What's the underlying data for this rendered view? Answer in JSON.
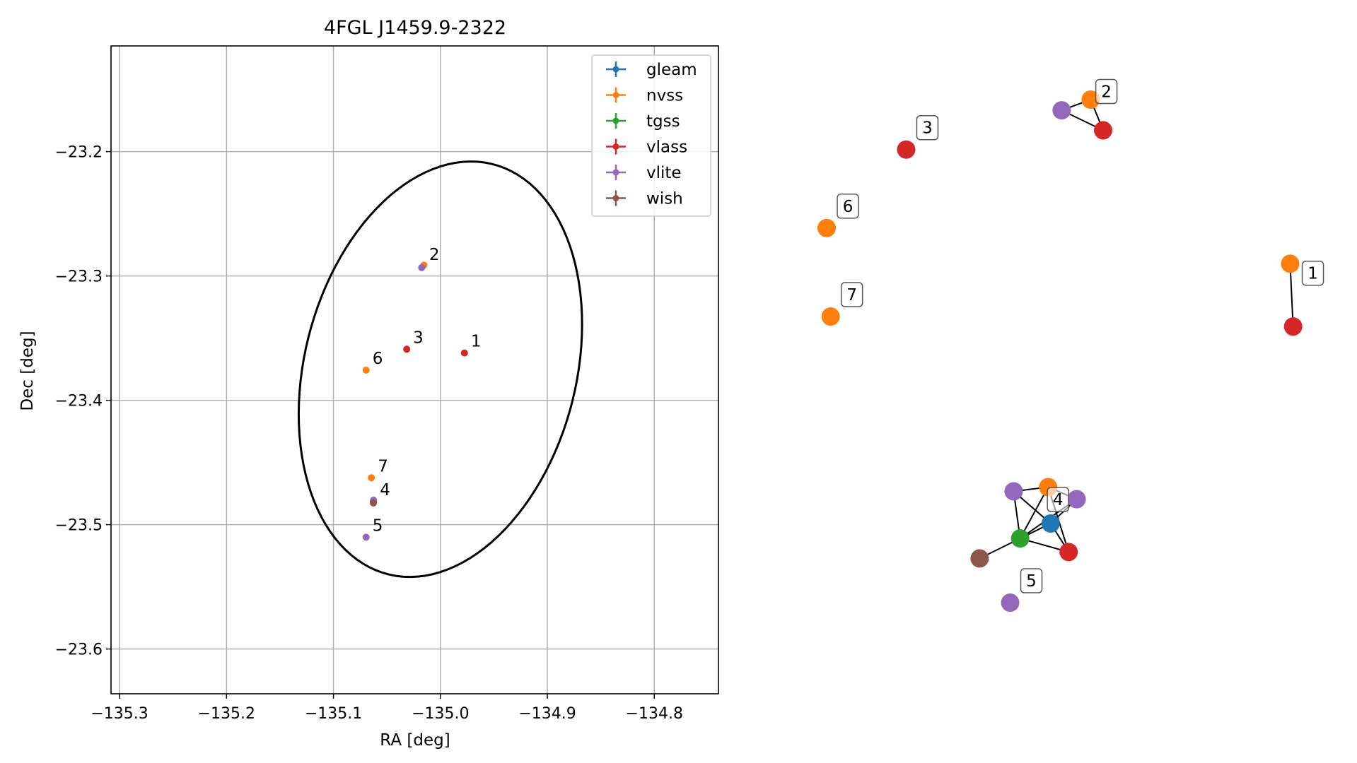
{
  "chart_data": [
    {
      "type": "scatter",
      "title": "4FGL J1459.9-2322",
      "xlabel": "RA [deg]",
      "ylabel": "Dec [deg]",
      "xlim": [
        -135.308,
        -134.74
      ],
      "ylim": [
        -23.636,
        -23.115
      ],
      "xticks": [
        -135.3,
        -135.2,
        -135.1,
        -135.0,
        -134.9,
        -134.8
      ],
      "xtick_labels": [
        "−135.3",
        "−135.2",
        "−135.1",
        "−135.0",
        "−134.9",
        "−134.8"
      ],
      "yticks": [
        -23.2,
        -23.3,
        -23.4,
        -23.5,
        -23.6
      ],
      "ytick_labels": [
        "−23.2",
        "−23.3",
        "−23.4",
        "−23.5",
        "−23.6"
      ],
      "grid": true,
      "legend_position": "top-right",
      "colors": {
        "gleam": "#1f77b4",
        "nvss": "#ff7f0e",
        "tgss": "#2ca02c",
        "vlass": "#d62728",
        "vlite": "#9467bd",
        "wish": "#8c564b"
      },
      "series": [
        {
          "name": "gleam",
          "x": [
            -135.0626
          ],
          "y": [
            -23.4815
          ]
        },
        {
          "name": "nvss",
          "x": [
            -135.0155,
            -135.0695,
            -135.0645
          ],
          "y": [
            -23.2913,
            -23.3757,
            -23.4623
          ]
        },
        {
          "name": "tgss",
          "x": [
            -135.0628
          ],
          "y": [
            -23.4813
          ]
        },
        {
          "name": "vlass",
          "x": [
            -134.9775,
            -135.0315,
            -135.0625
          ],
          "y": [
            -23.3619,
            -23.3589,
            -23.482
          ]
        },
        {
          "name": "vlite",
          "x": [
            -135.0175,
            -135.0625,
            -135.0695
          ],
          "y": [
            -23.2933,
            -23.4803,
            -23.5101
          ]
        },
        {
          "name": "wish",
          "x": [
            -135.0627
          ],
          "y": [
            -23.4826
          ]
        }
      ],
      "labels": [
        {
          "text": "1",
          "x": -134.9775,
          "y": -23.3619
        },
        {
          "text": "2",
          "x": -135.0165,
          "y": -23.2923
        },
        {
          "text": "3",
          "x": -135.0315,
          "y": -23.3589
        },
        {
          "text": "4",
          "x": -135.0625,
          "y": -23.4815
        },
        {
          "text": "5",
          "x": -135.0695,
          "y": -23.5101
        },
        {
          "text": "6",
          "x": -135.0695,
          "y": -23.3757
        },
        {
          "text": "7",
          "x": -135.0645,
          "y": -23.4623
        }
      ],
      "ellipse": {
        "center_ra": -135.0,
        "center_dec": -23.375,
        "semi_major_deg": 0.171,
        "semi_minor_deg": 0.116,
        "position_angle_deg": 16.9
      }
    },
    {
      "type": "network",
      "groups": [
        {
          "label": "1",
          "nodes": [
            {
              "survey": "nvss",
              "gx": 0.961,
              "gy": 0.33
            },
            {
              "survey": "vlass",
              "gx": 0.967,
              "gy": 0.418
            }
          ],
          "edges": [
            [
              0,
              1
            ]
          ]
        },
        {
          "label": "2",
          "nodes": [
            {
              "survey": "vlite",
              "gx": 0.504,
              "gy": 0.115
            },
            {
              "survey": "nvss",
              "gx": 0.562,
              "gy": 0.1
            },
            {
              "survey": "vlass",
              "gx": 0.587,
              "gy": 0.143
            }
          ],
          "edges": [
            [
              0,
              1
            ],
            [
              0,
              2
            ],
            [
              1,
              2
            ]
          ]
        },
        {
          "label": "3",
          "nodes": [
            {
              "survey": "vlass",
              "gx": 0.193,
              "gy": 0.17
            }
          ],
          "edges": []
        },
        {
          "label": "4",
          "nodes": [
            {
              "survey": "vlite",
              "gx": 0.408,
              "gy": 0.649
            },
            {
              "survey": "nvss",
              "gx": 0.477,
              "gy": 0.643
            },
            {
              "survey": "vlite",
              "gx": 0.534,
              "gy": 0.66
            },
            {
              "survey": "gleam",
              "gx": 0.482,
              "gy": 0.694
            },
            {
              "survey": "tgss",
              "gx": 0.421,
              "gy": 0.715
            },
            {
              "survey": "vlass",
              "gx": 0.518,
              "gy": 0.734
            },
            {
              "survey": "wish",
              "gx": 0.34,
              "gy": 0.743
            }
          ],
          "edges": [
            [
              0,
              1
            ],
            [
              0,
              3
            ],
            [
              0,
              4
            ],
            [
              1,
              2
            ],
            [
              1,
              4
            ],
            [
              1,
              5
            ],
            [
              2,
              3
            ],
            [
              2,
              4
            ],
            [
              3,
              4
            ],
            [
              3,
              5
            ],
            [
              4,
              5
            ],
            [
              4,
              6
            ]
          ]
        },
        {
          "label": "5",
          "nodes": [
            {
              "survey": "vlite",
              "gx": 0.401,
              "gy": 0.805
            }
          ],
          "edges": []
        },
        {
          "label": "6",
          "nodes": [
            {
              "survey": "nvss",
              "gx": 0.034,
              "gy": 0.28
            }
          ],
          "edges": []
        },
        {
          "label": "7",
          "nodes": [
            {
              "survey": "nvss",
              "gx": 0.042,
              "gy": 0.404
            }
          ],
          "edges": []
        }
      ]
    }
  ]
}
